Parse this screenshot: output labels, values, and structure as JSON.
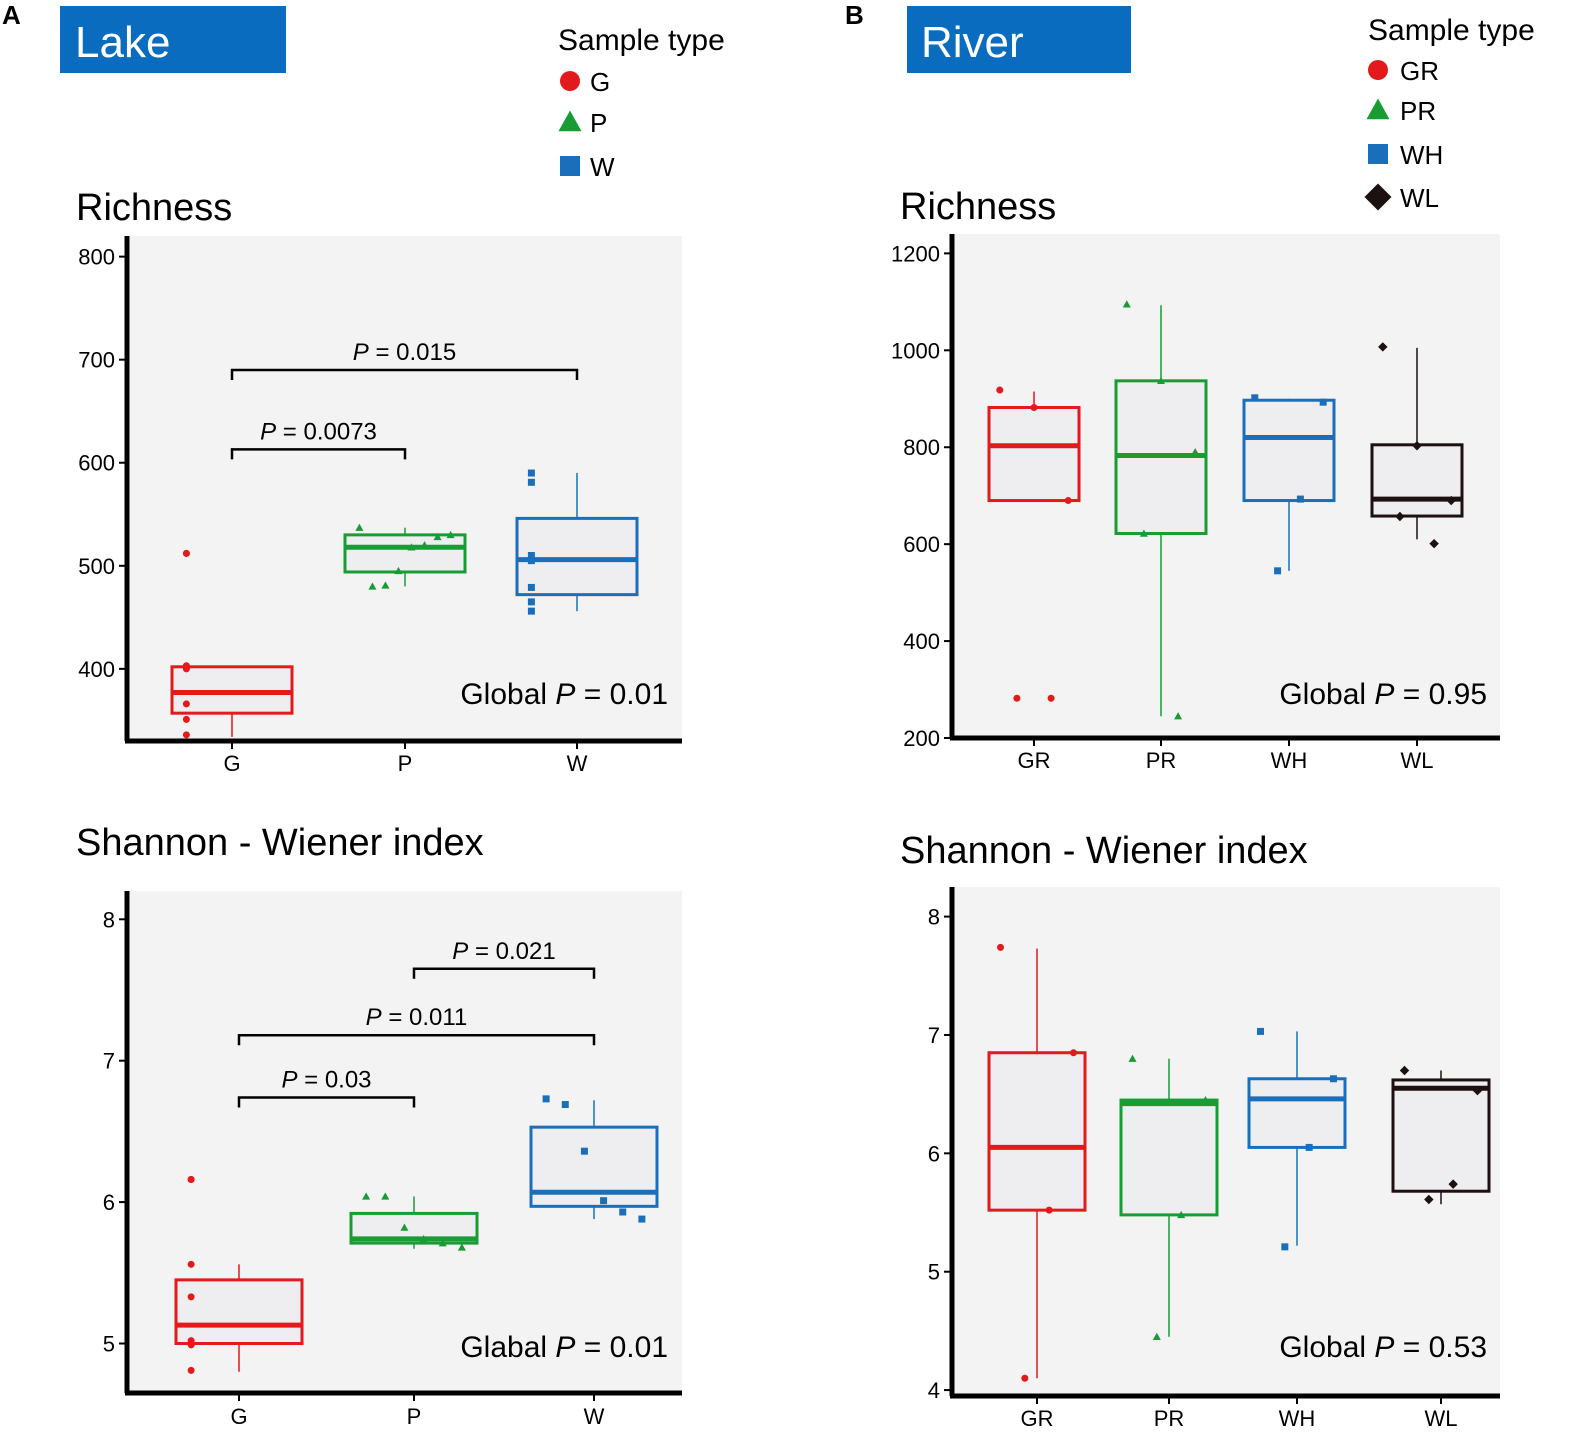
{
  "colors": {
    "red": "#e31a1c",
    "green": "#1a9c35",
    "blue": "#1b6fba",
    "black": "#1c1010",
    "title_box": "#0a6cbf",
    "plot_bg": "#f3f3f3",
    "box_fill": "#eeeef0"
  },
  "panel_a": {
    "letter": "A",
    "title": "Lake",
    "legend_title": "Sample type",
    "legend": [
      {
        "label": "G",
        "shape": "circle",
        "color": "#e31a1c"
      },
      {
        "label": "P",
        "shape": "triangle",
        "color": "#1a9c35"
      },
      {
        "label": "W",
        "shape": "square",
        "color": "#1b6fba"
      }
    ]
  },
  "panel_b": {
    "letter": "B",
    "title": "River",
    "legend_title": "Sample type",
    "legend": [
      {
        "label": "GR",
        "shape": "circle",
        "color": "#e31a1c"
      },
      {
        "label": "PR",
        "shape": "triangle",
        "color": "#1a9c35"
      },
      {
        "label": "WH",
        "shape": "square",
        "color": "#1b6fba"
      },
      {
        "label": "WL",
        "shape": "diamond",
        "color": "#1c1010"
      }
    ]
  },
  "chart_data": [
    {
      "id": "lake_richness",
      "type": "box",
      "title": "Richness",
      "ylim": [
        330,
        820
      ],
      "yticks": [
        400,
        500,
        600,
        700,
        800
      ],
      "categories": [
        "G",
        "P",
        "W"
      ],
      "boxes": [
        {
          "cat": "G",
          "q1": 357,
          "median": 377,
          "q3": 402,
          "wlo": 334,
          "whi": 402,
          "color": "#e31a1c",
          "shape": "circle",
          "points": [
            512,
            512,
            403,
            400,
            366,
            351,
            336
          ]
        },
        {
          "cat": "P",
          "q1": 494,
          "median": 518,
          "q3": 530,
          "wlo": 480,
          "whi": 537,
          "color": "#1a9c35",
          "shape": "triangle",
          "points": [
            537,
            530,
            528,
            520,
            518,
            495,
            481,
            480
          ]
        },
        {
          "cat": "W",
          "q1": 472,
          "median": 506,
          "q3": 546,
          "wlo": 456,
          "whi": 590,
          "color": "#1b6fba",
          "shape": "square",
          "points": [
            590,
            581,
            510,
            505,
            479,
            465,
            456
          ]
        }
      ],
      "comparisons": [
        {
          "from": "G",
          "to": "P",
          "y": 613,
          "label_prefix": "P",
          "label_value": " = 0.0073"
        },
        {
          "from": "G",
          "to": "W",
          "y": 690,
          "label_prefix": "P",
          "label_value": " = 0.015"
        }
      ],
      "global_prefix": "Global ",
      "global_p": "P",
      "global_value": " = 0.01"
    },
    {
      "id": "lake_shannon",
      "type": "box",
      "title": "Shannon - Wiener index",
      "ylim": [
        4.65,
        8.2
      ],
      "yticks": [
        5,
        6,
        7,
        8
      ],
      "categories": [
        "G",
        "P",
        "W"
      ],
      "boxes": [
        {
          "cat": "G",
          "q1": 5.0,
          "median": 5.13,
          "q3": 5.45,
          "wlo": 4.8,
          "whi": 5.56,
          "color": "#e31a1c",
          "shape": "circle",
          "points": [
            6.16,
            6.16,
            5.56,
            5.33,
            5.02,
            4.99,
            4.81
          ]
        },
        {
          "cat": "P",
          "q1": 5.71,
          "median": 5.74,
          "q3": 5.92,
          "wlo": 5.67,
          "whi": 6.04,
          "color": "#1a9c35",
          "shape": "triangle",
          "points": [
            6.04,
            6.04,
            5.82,
            5.74,
            5.71,
            5.68
          ]
        },
        {
          "cat": "W",
          "q1": 5.97,
          "median": 6.07,
          "q3": 6.53,
          "wlo": 5.88,
          "whi": 6.72,
          "color": "#1b6fba",
          "shape": "square",
          "points": [
            6.73,
            6.69,
            6.36,
            6.01,
            5.93,
            5.88
          ]
        }
      ],
      "comparisons": [
        {
          "from": "G",
          "to": "P",
          "y": 6.74,
          "label_prefix": "P",
          "label_value": " = 0.03"
        },
        {
          "from": "G",
          "to": "W",
          "y": 7.18,
          "label_prefix": "P",
          "label_value": " = 0.011"
        },
        {
          "from": "P",
          "to": "W",
          "y": 7.65,
          "label_prefix": "P",
          "label_value": " = 0.021"
        }
      ],
      "global_prefix": "Glabal ",
      "global_p": "P",
      "global_value": " = 0.01"
    },
    {
      "id": "river_richness",
      "type": "box",
      "title": "Richness",
      "ylim": [
        200,
        1240
      ],
      "yticks": [
        200,
        400,
        600,
        800,
        1000,
        1200
      ],
      "categories": [
        "GR",
        "PR",
        "WH",
        "WL"
      ],
      "boxes": [
        {
          "cat": "GR",
          "q1": 690,
          "median": 803,
          "q3": 882,
          "wlo": 690,
          "whi": 915,
          "color": "#e31a1c",
          "shape": "circle",
          "points": [
            918,
            882,
            690,
            282,
            282
          ]
        },
        {
          "cat": "PR",
          "q1": 622,
          "median": 783,
          "q3": 937,
          "wlo": 245,
          "whi": 1093,
          "color": "#1a9c35",
          "shape": "triangle",
          "points": [
            1095,
            937,
            790,
            622,
            245
          ]
        },
        {
          "cat": "WH",
          "q1": 690,
          "median": 820,
          "q3": 897,
          "wlo": 545,
          "whi": 900,
          "color": "#1b6fba",
          "shape": "square",
          "points": [
            902,
            893,
            693,
            545
          ]
        },
        {
          "cat": "WL",
          "q1": 658,
          "median": 693,
          "q3": 805,
          "wlo": 610,
          "whi": 1005,
          "color": "#1c1010",
          "shape": "diamond",
          "points": [
            1007,
            803,
            690,
            657,
            601
          ]
        }
      ],
      "comparisons": [],
      "global_prefix": "Global ",
      "global_p": "P",
      "global_value": " = 0.95"
    },
    {
      "id": "river_shannon",
      "type": "box",
      "title": "Shannon - Wiener index",
      "ylim": [
        3.95,
        8.25
      ],
      "yticks": [
        4,
        5,
        6,
        7,
        8
      ],
      "categories": [
        "GR",
        "PR",
        "WH",
        "WL"
      ],
      "boxes": [
        {
          "cat": "GR",
          "q1": 5.52,
          "median": 6.05,
          "q3": 6.85,
          "wlo": 4.1,
          "whi": 7.73,
          "color": "#e31a1c",
          "shape": "circle",
          "points": [
            7.74,
            6.85,
            5.52,
            4.1
          ]
        },
        {
          "cat": "PR",
          "q1": 5.48,
          "median": 6.42,
          "q3": 6.45,
          "wlo": 4.45,
          "whi": 6.8,
          "color": "#1a9c35",
          "shape": "triangle",
          "points": [
            6.8,
            6.45,
            5.48,
            4.45
          ]
        },
        {
          "cat": "WH",
          "q1": 6.05,
          "median": 6.46,
          "q3": 6.63,
          "wlo": 5.22,
          "whi": 7.03,
          "color": "#1b6fba",
          "shape": "square",
          "points": [
            7.03,
            6.63,
            6.05,
            5.21
          ]
        },
        {
          "cat": "WL",
          "q1": 5.68,
          "median": 6.55,
          "q3": 6.62,
          "wlo": 5.57,
          "whi": 6.7,
          "color": "#1c1010",
          "shape": "diamond",
          "points": [
            6.7,
            6.53,
            5.74,
            5.61
          ]
        }
      ],
      "comparisons": [],
      "global_prefix": "Global ",
      "global_p": "P",
      "global_value": " = 0.53"
    }
  ]
}
